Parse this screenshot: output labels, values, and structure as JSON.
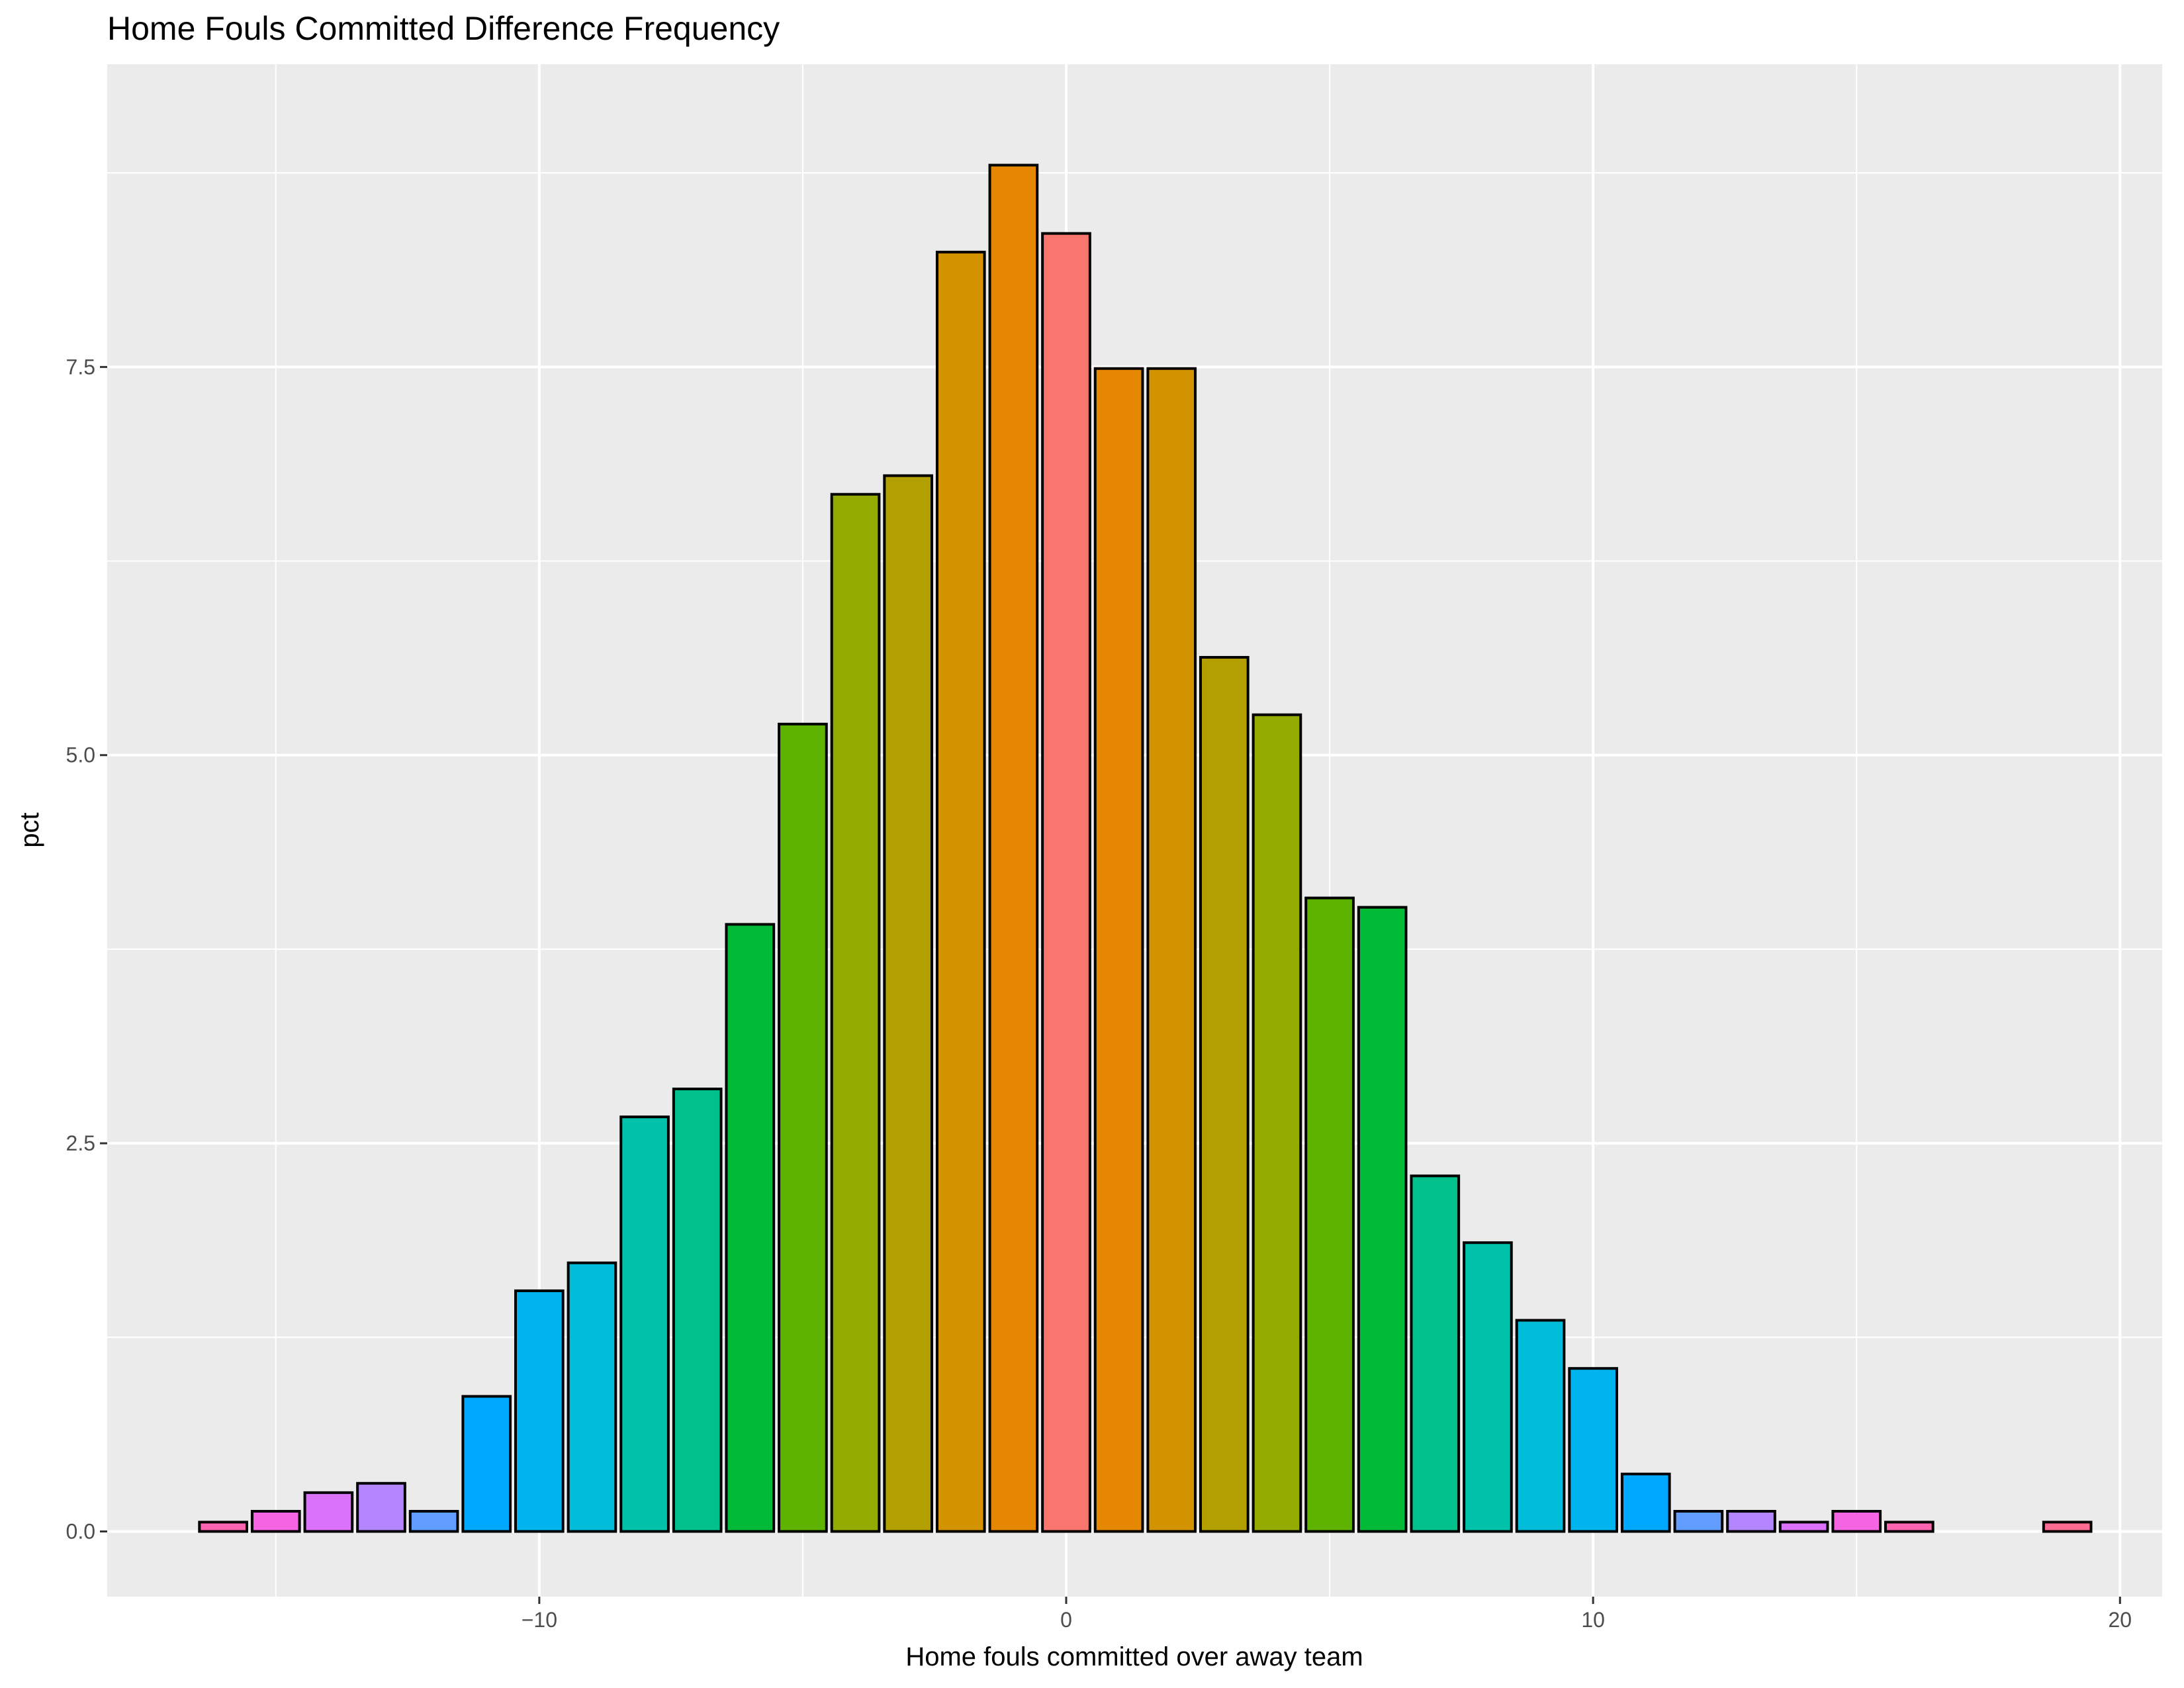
{
  "chart_data": {
    "type": "bar",
    "title": "Home Fouls Committed Difference Frequency",
    "xlabel": "Home fouls committed over away team",
    "ylabel": "pct",
    "xlim": [
      -18.2,
      20.8
    ],
    "ylim": [
      -0.42,
      9.45
    ],
    "x_ticks": [
      -10,
      0,
      10,
      20
    ],
    "x_tick_labels": [
      "−10",
      "0",
      "10",
      "20"
    ],
    "y_ticks": [
      0.0,
      2.5,
      5.0,
      7.5
    ],
    "y_tick_labels": [
      "0.0",
      "2.5",
      "5.0",
      "7.5"
    ],
    "grid": true,
    "legend": "none",
    "bar_outline_color": "#000000",
    "panel_background": "#ebebeb",
    "grid_color": "#ffffff",
    "x": [
      -16,
      -15,
      -14,
      -13,
      -12,
      -11,
      -10,
      -9,
      -8,
      -7,
      -6,
      -5,
      -4,
      -3,
      -2,
      -1,
      0,
      1,
      2,
      3,
      4,
      5,
      6,
      7,
      8,
      9,
      10,
      11,
      12,
      13,
      14,
      15,
      16,
      19
    ],
    "values": [
      0.06,
      0.13,
      0.25,
      0.31,
      0.13,
      0.87,
      1.55,
      1.73,
      2.67,
      2.85,
      3.91,
      5.2,
      6.68,
      6.8,
      8.24,
      8.8,
      8.36,
      7.49,
      7.49,
      5.63,
      5.26,
      4.08,
      4.02,
      2.29,
      1.86,
      1.36,
      1.05,
      0.37,
      0.13,
      0.13,
      0.06,
      0.13,
      0.06,
      0.06
    ],
    "colors": [
      "#FF64B0",
      "#F564E3",
      "#DB72FB",
      "#B385FF",
      "#619CFF",
      "#00A9FF",
      "#00B4F0",
      "#00BCD8",
      "#00C1A9",
      "#00C08B",
      "#00BA38",
      "#5EB300",
      "#93AA00",
      "#B3A000",
      "#D39200",
      "#E58700",
      "#F8766D",
      "#E58700",
      "#D39200",
      "#B3A000",
      "#93AA00",
      "#5EB300",
      "#00BA38",
      "#00C08B",
      "#00C1A9",
      "#00BCD8",
      "#00B4F0",
      "#00A9FF",
      "#619CFF",
      "#B385FF",
      "#DB72FB",
      "#F564E3",
      "#FF64B0",
      "#FF6C91"
    ]
  }
}
